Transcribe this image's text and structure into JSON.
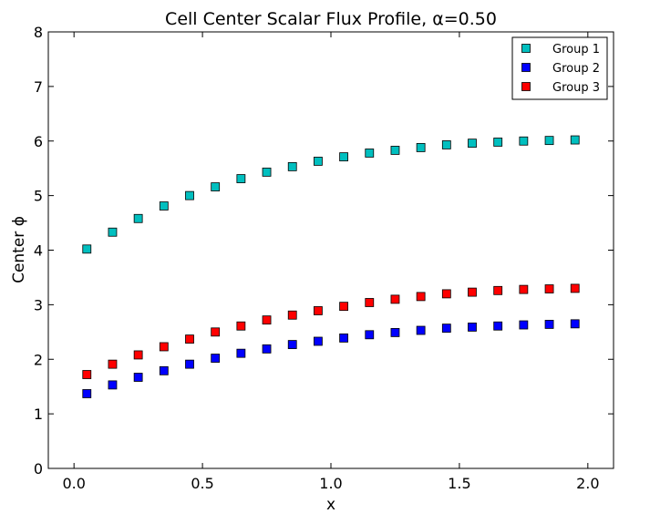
{
  "chart_data": {
    "type": "scatter",
    "title": "Cell Center Scalar Flux Profile, α=0.50",
    "xlabel": "x",
    "ylabel": "Center ϕ",
    "xlim": [
      -0.1,
      2.1
    ],
    "ylim": [
      0,
      8
    ],
    "xticks": [
      "0.0",
      "0.5",
      "1.0",
      "1.5",
      "2.0"
    ],
    "xtick_values": [
      0.0,
      0.5,
      1.0,
      1.5,
      2.0
    ],
    "yticks": [
      "0",
      "1",
      "2",
      "3",
      "4",
      "5",
      "6",
      "7",
      "8"
    ],
    "ytick_values": [
      0,
      1,
      2,
      3,
      4,
      5,
      6,
      7,
      8
    ],
    "grid": false,
    "legend_position": "top-right",
    "x": [
      0.05,
      0.15,
      0.25,
      0.35,
      0.45,
      0.55,
      0.65,
      0.75,
      0.85,
      0.95,
      1.05,
      1.15,
      1.25,
      1.35,
      1.45,
      1.55,
      1.65,
      1.75,
      1.85,
      1.95
    ],
    "series": [
      {
        "name": "Group 1",
        "color": "#00bfbf",
        "values": [
          4.02,
          4.33,
          4.58,
          4.81,
          5.0,
          5.16,
          5.31,
          5.43,
          5.53,
          5.63,
          5.71,
          5.78,
          5.83,
          5.88,
          5.93,
          5.96,
          5.98,
          6.0,
          6.01,
          6.02
        ]
      },
      {
        "name": "Group 2",
        "color": "#0000ff",
        "values": [
          1.37,
          1.53,
          1.67,
          1.79,
          1.91,
          2.02,
          2.11,
          2.19,
          2.27,
          2.33,
          2.39,
          2.45,
          2.49,
          2.53,
          2.57,
          2.59,
          2.61,
          2.63,
          2.64,
          2.65
        ]
      },
      {
        "name": "Group 3",
        "color": "#ff0000",
        "values": [
          1.72,
          1.91,
          2.08,
          2.23,
          2.37,
          2.5,
          2.61,
          2.72,
          2.81,
          2.89,
          2.97,
          3.04,
          3.1,
          3.15,
          3.2,
          3.23,
          3.26,
          3.28,
          3.29,
          3.3
        ]
      }
    ]
  }
}
